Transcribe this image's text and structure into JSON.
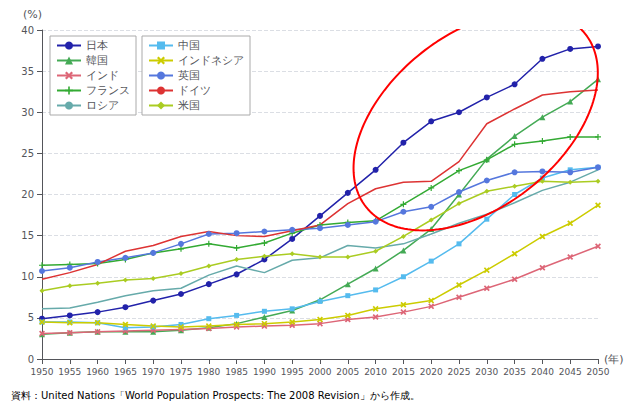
{
  "chart_data": {
    "type": "line",
    "xlabel": "(年)",
    "ylabel": "(%)",
    "source": "資料：United Nations「World Population Prospects: The 2008 Revision」から作成。",
    "x": [
      1950,
      1955,
      1960,
      1965,
      1970,
      1975,
      1980,
      1985,
      1990,
      1995,
      2000,
      2005,
      2010,
      2015,
      2020,
      2025,
      2030,
      2035,
      2040,
      2045,
      2050
    ],
    "xlim": [
      1950,
      2050
    ],
    "xticks": [
      1950,
      1955,
      1960,
      1965,
      1970,
      1975,
      1980,
      1985,
      1990,
      1995,
      2000,
      2005,
      2010,
      2015,
      2020,
      2025,
      2030,
      2035,
      2040,
      2045,
      2050
    ],
    "ylim": [
      0,
      40
    ],
    "yticks": [
      0,
      5,
      10,
      15,
      20,
      25,
      30,
      35,
      40
    ],
    "grid": true,
    "legend": "upper left",
    "series": [
      {
        "name": "日本",
        "color": "#2222aa",
        "marker": "circle",
        "values": [
          4.9,
          5.3,
          5.7,
          6.3,
          7.1,
          7.9,
          9.1,
          10.3,
          12.1,
          14.6,
          17.4,
          20.2,
          23.0,
          26.3,
          28.9,
          30.0,
          31.8,
          33.4,
          36.5,
          37.7,
          38.0
        ]
      },
      {
        "name": "韓国",
        "color": "#44aa55",
        "marker": "triangle",
        "values": [
          3.0,
          3.2,
          3.3,
          3.3,
          3.3,
          3.5,
          3.8,
          4.3,
          5.1,
          5.9,
          7.2,
          9.1,
          11.0,
          13.2,
          15.8,
          20.0,
          24.3,
          27.1,
          29.4,
          31.3,
          34.0
        ]
      },
      {
        "name": "インド",
        "color": "#dd6677",
        "marker": "x",
        "values": [
          3.1,
          3.2,
          3.3,
          3.4,
          3.5,
          3.6,
          3.7,
          3.9,
          4.0,
          4.1,
          4.3,
          4.8,
          5.1,
          5.7,
          6.4,
          7.5,
          8.6,
          9.7,
          11.1,
          12.4,
          13.7
        ]
      },
      {
        "name": "フランス",
        "color": "#33aa33",
        "marker": "plus",
        "values": [
          11.4,
          11.5,
          11.6,
          12.1,
          12.9,
          13.4,
          14.0,
          13.5,
          14.1,
          15.3,
          16.3,
          16.6,
          16.8,
          18.8,
          20.8,
          22.9,
          24.2,
          26.1,
          26.5,
          27.0,
          27.0
        ]
      },
      {
        "name": "ロシア",
        "color": "#66aaaa",
        "marker": "none",
        "values": [
          6.1,
          6.2,
          6.9,
          7.7,
          8.3,
          8.6,
          10.2,
          11.3,
          10.5,
          12.0,
          12.3,
          13.8,
          13.5,
          14.0,
          15.2,
          16.5,
          17.6,
          19.0,
          20.5,
          21.5,
          23.0
        ]
      },
      {
        "name": "中国",
        "color": "#55bbee",
        "marker": "square",
        "values": [
          4.5,
          4.5,
          4.4,
          3.8,
          3.9,
          4.2,
          4.9,
          5.3,
          5.8,
          6.1,
          7.0,
          7.7,
          8.4,
          10.0,
          11.9,
          14.0,
          17.0,
          20.0,
          22.0,
          23.0,
          23.3
        ]
      },
      {
        "name": "インドネシア",
        "color": "#cccc00",
        "marker": "x",
        "values": [
          4.5,
          4.4,
          4.4,
          4.2,
          4.0,
          3.9,
          4.0,
          4.2,
          4.3,
          4.5,
          4.8,
          5.3,
          6.1,
          6.6,
          7.1,
          9.0,
          10.8,
          12.8,
          14.9,
          16.5,
          18.7
        ]
      },
      {
        "name": "英国",
        "color": "#5577dd",
        "marker": "circle",
        "values": [
          10.7,
          11.1,
          11.8,
          12.3,
          12.9,
          14.0,
          15.2,
          15.3,
          15.5,
          15.7,
          15.9,
          16.3,
          16.7,
          17.9,
          18.5,
          20.3,
          21.7,
          22.7,
          22.8,
          22.7,
          23.3
        ]
      },
      {
        "name": "ドイツ",
        "color": "#dd3333",
        "marker": "none",
        "values": [
          9.7,
          10.5,
          11.5,
          13.1,
          13.8,
          14.9,
          15.5,
          15.0,
          14.9,
          15.6,
          16.3,
          18.9,
          20.7,
          21.5,
          21.6,
          24.0,
          28.6,
          30.4,
          32.1,
          32.5,
          32.7
        ]
      },
      {
        "name": "米国",
        "color": "#aacc22",
        "marker": "diamond",
        "values": [
          8.3,
          8.9,
          9.2,
          9.6,
          9.8,
          10.4,
          11.3,
          12.1,
          12.5,
          12.8,
          12.4,
          12.4,
          13.1,
          14.9,
          16.9,
          18.9,
          20.4,
          21.0,
          21.6,
          21.5,
          21.6
        ]
      }
    ],
    "ellipse": {
      "center": [
        2028,
        29
      ],
      "width": 46,
      "height": 23,
      "angle": 20,
      "color": "red"
    }
  }
}
